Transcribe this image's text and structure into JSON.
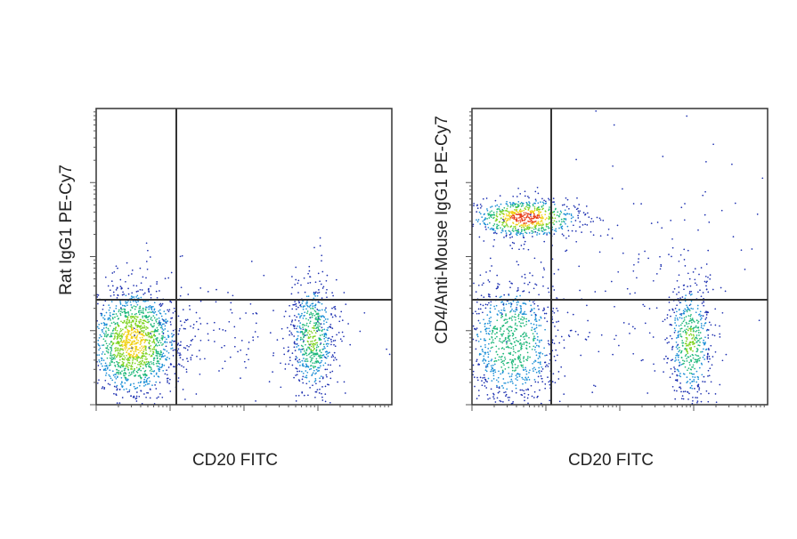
{
  "chart_data": [
    {
      "type": "scatter",
      "x_label": "CD20 FITC",
      "y_label": "Rat IgG1 PE-Cy7"
    },
    {
      "type": "scatter",
      "x_label": "CD20 FITC",
      "y_label": "CD4/Anti-Mouse IgG1 PE-Cy7"
    }
  ]
}
